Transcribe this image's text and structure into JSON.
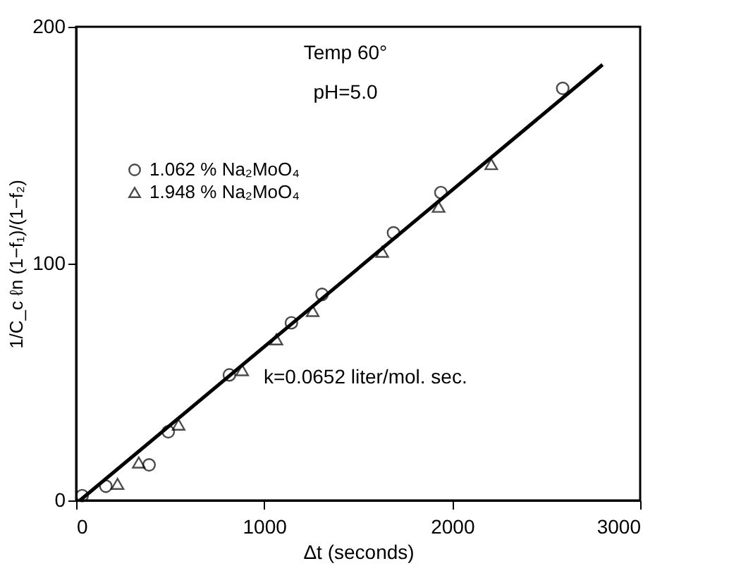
{
  "chart_data": {
    "type": "scatter",
    "xlabel": "Δt (seconds)",
    "ylabel": "1/C_c ℓn (1−f₁)/(1−f₂)",
    "xlim": [
      0,
      3000
    ],
    "xticks": [
      0,
      1000,
      2000,
      3000
    ],
    "ylim": [
      0,
      200
    ],
    "yticks": [
      0,
      100,
      200
    ],
    "grid": false,
    "legend": "top left",
    "annotations": [
      "Temp 60°",
      "pH=5.0",
      "k=0.0652 liter/mol. sec."
    ],
    "series": [
      {
        "type": "line",
        "color": "#000000",
        "marker": "none",
        "line_style": "solid",
        "x": [
          20,
          2800
        ],
        "values": [
          0,
          184
        ]
      },
      {
        "name": "1.062 % Na₂MoO₄",
        "color": "#000000",
        "marker": "circle",
        "x": [
          32,
          158,
          388,
          490,
          815,
          1145,
          1308,
          1688,
          1940,
          2588
        ],
        "values": [
          2,
          6,
          15,
          29,
          53,
          75,
          87,
          113,
          130,
          174
        ]
      },
      {
        "name": "1.948 % Na₂MoO₄",
        "color": "#000000",
        "marker": "triangle",
        "x": [
          220,
          333,
          545,
          883,
          1065,
          1258,
          1628,
          1928,
          2208
        ],
        "values": [
          7,
          16,
          32,
          55,
          68,
          80,
          105,
          124,
          142
        ]
      }
    ]
  }
}
